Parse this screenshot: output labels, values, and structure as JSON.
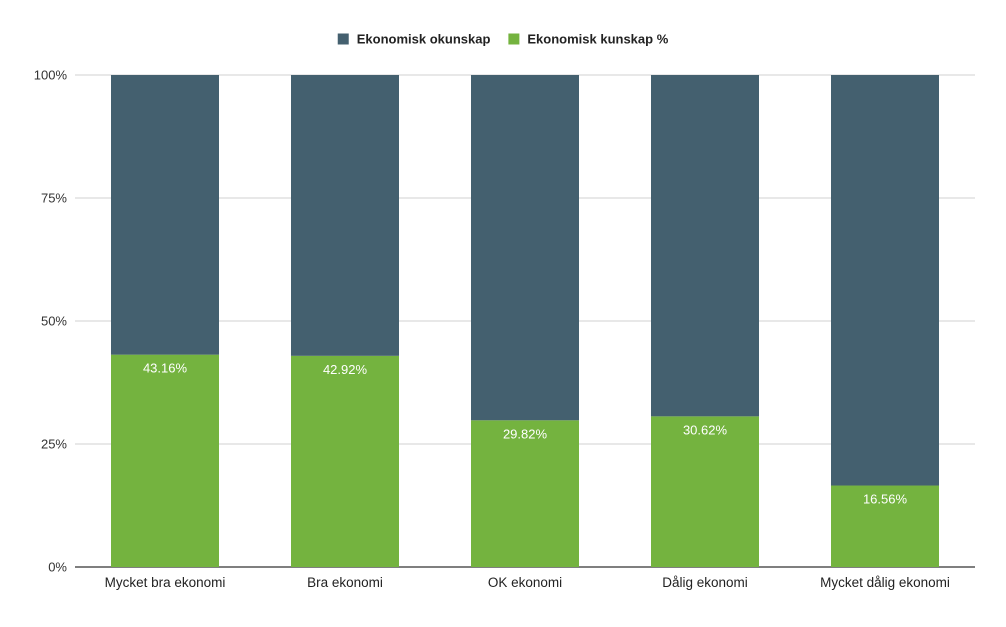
{
  "chart_data": {
    "type": "bar",
    "stacked": true,
    "normalized_percent": true,
    "categories": [
      "Mycket bra ekonomi",
      "Bra ekonomi",
      "OK ekonomi",
      "Dålig ekonomi",
      "Mycket dålig ekonomi"
    ],
    "series": [
      {
        "name": "Ekonomisk okunskap",
        "color": "#44606f",
        "values": [
          56.84,
          57.08,
          70.18,
          69.38,
          83.44
        ],
        "show_labels": false
      },
      {
        "name": "Ekonomisk kunskap %",
        "color": "#74b33f",
        "values": [
          43.16,
          42.92,
          29.82,
          30.62,
          16.56
        ],
        "labels": [
          "43.16%",
          "42.92%",
          "29.82%",
          "30.62%",
          "16.56%"
        ],
        "show_labels": true
      }
    ],
    "stack_order": [
      "Ekonomisk kunskap %",
      "Ekonomisk okunskap"
    ],
    "yticks": [
      {
        "value": 0,
        "label": "0%"
      },
      {
        "value": 25,
        "label": "25%"
      },
      {
        "value": 50,
        "label": "50%"
      },
      {
        "value": 75,
        "label": "75%"
      },
      {
        "value": 100,
        "label": "100%"
      }
    ],
    "ylim": [
      0,
      100
    ],
    "grid": true,
    "legend": "top-center",
    "title": "",
    "xlabel": "",
    "ylabel": ""
  }
}
